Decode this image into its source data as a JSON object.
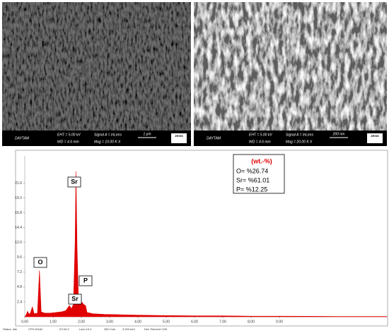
{
  "sem_images": [
    {
      "label": "DAYTAM",
      "eht": "EHT = 5.00 kV",
      "wd": "WD = 4.6 mm",
      "signal": "Signal A = InLens",
      "mag": "Mag = 10.00 K X",
      "scale": "1 μm",
      "brand": "ZEISS"
    },
    {
      "label": "DAYTAM",
      "eht": "EHT = 5.00 kV",
      "wd": "WD = 4.6 mm",
      "signal": "Signal A = InLens",
      "mag": "Mag = 20.00 K X",
      "scale": "200 nm",
      "brand": "ZEISS"
    }
  ],
  "chart_data": {
    "type": "area",
    "color": "#e00000",
    "x": [
      0.0,
      0.05,
      0.1,
      0.15,
      0.2,
      0.27,
      0.33,
      0.45,
      0.52,
      0.58,
      0.7,
      0.9,
      1.1,
      1.3,
      1.45,
      1.58,
      1.65,
      1.72,
      1.78,
      1.81,
      1.85,
      1.9,
      1.96,
      2.01,
      2.08,
      2.15,
      2.2,
      2.4,
      2.8,
      3.2,
      3.7,
      4.2,
      5,
      6,
      7,
      8,
      9,
      10,
      11,
      12,
      12.8
    ],
    "values": [
      0,
      0.3,
      0.9,
      0.4,
      0.6,
      1.6,
      0.5,
      0.6,
      7.5,
      0.8,
      0.6,
      0.6,
      0.7,
      0.8,
      1.0,
      1.8,
      1.3,
      2.0,
      12,
      23.5,
      11,
      2.6,
      2.2,
      2.4,
      2.0,
      1.8,
      0.7,
      0.5,
      0.4,
      0.35,
      0.3,
      0.25,
      0.2,
      0.15,
      0.15,
      0.1,
      0.1,
      0.08,
      0.05,
      0.05,
      0.05
    ],
    "xlim": [
      0,
      12.8
    ],
    "ylim": [
      0,
      26
    ],
    "xticks": [
      {
        "value": 0,
        "label": "0.00"
      },
      {
        "value": 1,
        "label": "1.00"
      },
      {
        "value": 2,
        "label": "2.00"
      },
      {
        "value": 3,
        "label": "3.00"
      },
      {
        "value": 4,
        "label": "4.00"
      },
      {
        "value": 5,
        "label": "5.00"
      },
      {
        "value": 6,
        "label": "6.00"
      },
      {
        "value": 7,
        "label": "7.00"
      },
      {
        "value": 8,
        "label": "8.00"
      },
      {
        "value": 9,
        "label": "9.00"
      }
    ],
    "yticks": [
      2.4,
      4.8,
      7.2,
      9.6,
      {
        "value": 12,
        "label": "12.0"
      },
      14.4,
      16.8,
      19.2,
      21.6
    ],
    "annotations": [
      "O",
      "Sr",
      "P",
      "Sr"
    ],
    "legend": {
      "title": "(wt.-%)",
      "lines": [
        "O= %26.74",
        "Sr= %61.01",
        "P= %12.25"
      ]
    }
  },
  "status_bar": [
    "Status: Idle",
    "CPS:40162",
    "DT:49.2",
    "Lsec:15.3",
    "280 Cnts",
    "3.920 keV",
    "Det: Element C2B"
  ]
}
